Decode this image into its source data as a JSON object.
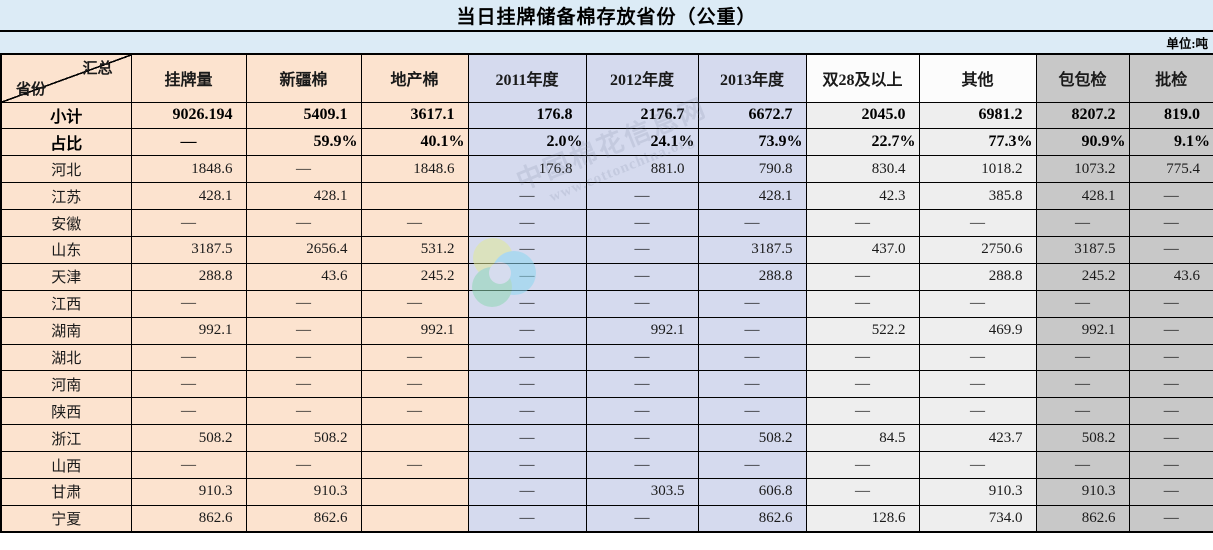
{
  "title": "当日挂牌储备棉存放省份（公重）",
  "unit_label": "单位:吨",
  "corner": {
    "top": "汇总",
    "bottom": "省份"
  },
  "columns": [
    "挂牌量",
    "新疆棉",
    "地产棉",
    "2011年度",
    "2012年度",
    "2013年度",
    "双28及以上",
    "其他",
    "包包检",
    "批检"
  ],
  "rows": [
    {
      "label": "小计",
      "bold": true,
      "cells": [
        "9026.194",
        "5409.1",
        "3617.1",
        "176.8",
        "2176.7",
        "6672.7",
        "2045.0",
        "6981.2",
        "8207.2",
        "819.0"
      ]
    },
    {
      "label": "占比",
      "bold": true,
      "cells": [
        "—",
        "59.9%",
        "40.1%",
        "2.0%",
        "24.1%",
        "73.9%",
        "22.7%",
        "77.3%",
        "90.9%",
        "9.1%"
      ]
    },
    {
      "label": "河北",
      "bold": false,
      "cells": [
        "1848.6",
        "—",
        "1848.6",
        "176.8",
        "881.0",
        "790.8",
        "830.4",
        "1018.2",
        "1073.2",
        "775.4"
      ]
    },
    {
      "label": "江苏",
      "bold": false,
      "cells": [
        "428.1",
        "428.1",
        "",
        "—",
        "—",
        "428.1",
        "42.3",
        "385.8",
        "428.1",
        "—"
      ]
    },
    {
      "label": "安徽",
      "bold": false,
      "cells": [
        "—",
        "—",
        "—",
        "—",
        "—",
        "—",
        "—",
        "—",
        "—",
        "—"
      ]
    },
    {
      "label": "山东",
      "bold": false,
      "cells": [
        "3187.5",
        "2656.4",
        "531.2",
        "—",
        "—",
        "3187.5",
        "437.0",
        "2750.6",
        "3187.5",
        "—"
      ]
    },
    {
      "label": "天津",
      "bold": false,
      "cells": [
        "288.8",
        "43.6",
        "245.2",
        "—",
        "—",
        "288.8",
        "—",
        "288.8",
        "245.2",
        "43.6"
      ]
    },
    {
      "label": "江西",
      "bold": false,
      "cells": [
        "—",
        "—",
        "—",
        "—",
        "—",
        "—",
        "—",
        "—",
        "—",
        "—"
      ]
    },
    {
      "label": "湖南",
      "bold": false,
      "cells": [
        "992.1",
        "—",
        "992.1",
        "—",
        "992.1",
        "—",
        "522.2",
        "469.9",
        "992.1",
        "—"
      ]
    },
    {
      "label": "湖北",
      "bold": false,
      "cells": [
        "—",
        "—",
        "—",
        "—",
        "—",
        "—",
        "—",
        "—",
        "—",
        "—"
      ]
    },
    {
      "label": "河南",
      "bold": false,
      "cells": [
        "—",
        "—",
        "—",
        "—",
        "—",
        "—",
        "—",
        "—",
        "—",
        "—"
      ]
    },
    {
      "label": "陕西",
      "bold": false,
      "cells": [
        "—",
        "—",
        "—",
        "—",
        "—",
        "—",
        "—",
        "—",
        "—",
        "—"
      ]
    },
    {
      "label": "浙江",
      "bold": false,
      "cells": [
        "508.2",
        "508.2",
        "",
        "—",
        "—",
        "508.2",
        "84.5",
        "423.7",
        "508.2",
        "—"
      ]
    },
    {
      "label": "山西",
      "bold": false,
      "cells": [
        "—",
        "—",
        "—",
        "—",
        "—",
        "—",
        "—",
        "—",
        "—",
        "—"
      ]
    },
    {
      "label": "甘肃",
      "bold": false,
      "cells": [
        "910.3",
        "910.3",
        "",
        "—",
        "303.5",
        "606.8",
        "—",
        "910.3",
        "910.3",
        "—"
      ]
    },
    {
      "label": "宁夏",
      "bold": false,
      "cells": [
        "862.6",
        "862.6",
        "",
        "—",
        "—",
        "862.6",
        "128.6",
        "734.0",
        "862.6",
        "—"
      ]
    }
  ],
  "watermark": {
    "logo": "cotton-china-swirl-logo",
    "text_line1": "中国棉花信息网",
    "text_line2": "www.cottonchina.org"
  },
  "colors": {
    "titleBg": "#dcebf6",
    "peach": "#fce3cf",
    "lavender": "#d5daee",
    "lightzone": "#eeeeee",
    "lightzoneHead": "#fcfcfc",
    "gray": "#c8c8c8",
    "border": "#000000",
    "textMain": "#1a1a1a"
  }
}
